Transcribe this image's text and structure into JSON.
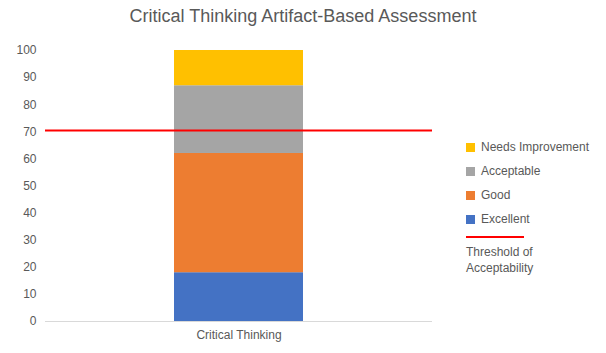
{
  "chart_data": {
    "type": "bar",
    "title": "Critical Thinking Artifact-Based Assessment",
    "categories": [
      "Critical Thinking"
    ],
    "series": [
      {
        "name": "Excellent",
        "color": "#4472c4",
        "values": [
          18
        ]
      },
      {
        "name": "Good",
        "color": "#ed7d31",
        "values": [
          44
        ]
      },
      {
        "name": "Acceptable",
        "color": "#a5a5a5",
        "values": [
          25
        ]
      },
      {
        "name": "Needs Improvement",
        "color": "#ffc000",
        "values": [
          13
        ]
      }
    ],
    "stacked": true,
    "ylim": [
      0,
      100
    ],
    "yticks": [
      0,
      10,
      20,
      30,
      40,
      50,
      60,
      70,
      80,
      90,
      100
    ],
    "grid": false,
    "legend": "right",
    "reference_line": {
      "name": "Threshold of Acceptability",
      "value": 70.5,
      "color": "#ff0000"
    }
  }
}
